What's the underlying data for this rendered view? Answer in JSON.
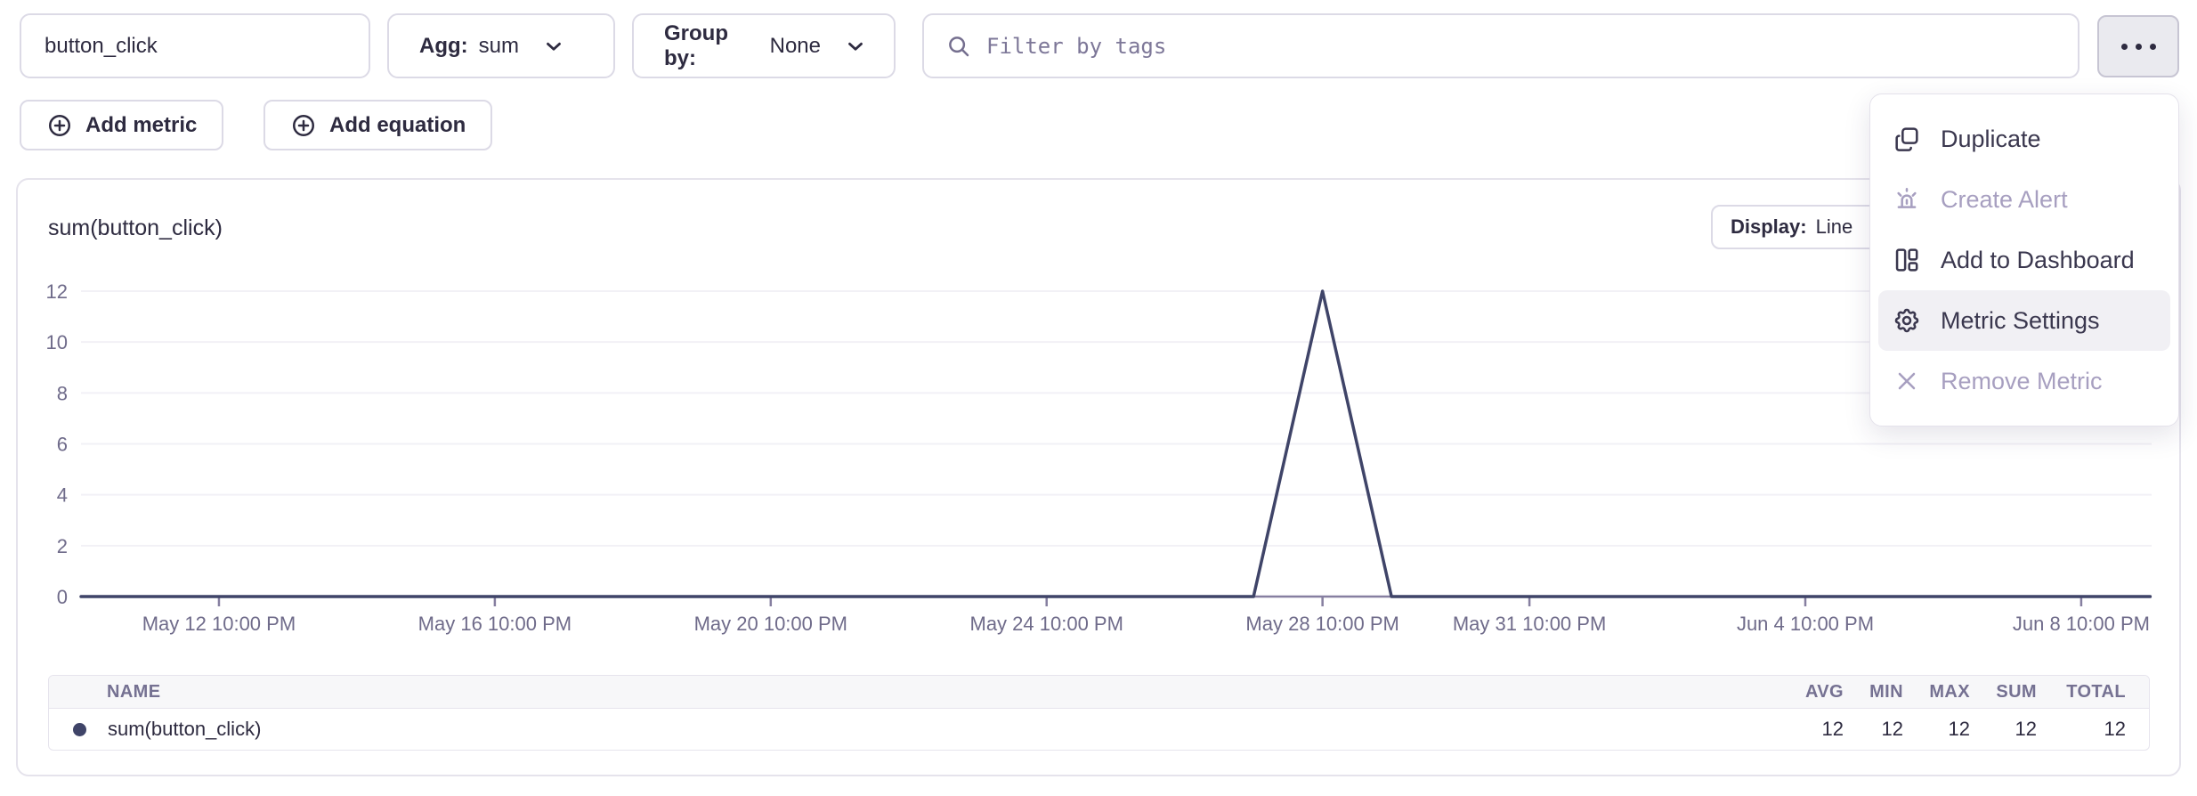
{
  "toolbar": {
    "metric_name": "button_click",
    "agg_label": "Agg:",
    "agg_value": "sum",
    "groupby_label": "Group by:",
    "groupby_value": "None",
    "filter_placeholder": "Filter by tags",
    "add_metric_label": "Add metric",
    "add_equation_label": "Add equation"
  },
  "menu": {
    "items": [
      {
        "label": "Duplicate",
        "icon": "duplicate-icon",
        "disabled": false,
        "highlighted": false
      },
      {
        "label": "Create Alert",
        "icon": "alert-icon",
        "disabled": true,
        "highlighted": false
      },
      {
        "label": "Add to Dashboard",
        "icon": "dashboard-icon",
        "disabled": false,
        "highlighted": false
      },
      {
        "label": "Metric Settings",
        "icon": "gear-icon",
        "disabled": false,
        "highlighted": true
      },
      {
        "label": "Remove Metric",
        "icon": "x-icon",
        "disabled": true,
        "highlighted": false
      }
    ]
  },
  "chart_panel": {
    "title": "sum(button_click)",
    "display_label": "Display:",
    "display_value": "Line"
  },
  "chart_data": {
    "type": "line",
    "title": "sum(button_click)",
    "ylabel": "",
    "xlabel": "",
    "ylim": [
      0,
      12
    ],
    "y_ticks": [
      0,
      2,
      4,
      6,
      8,
      10,
      12
    ],
    "grid": true,
    "x_ticks": [
      {
        "label": "May 12 10:00 PM",
        "day": 2
      },
      {
        "label": "May 16 10:00 PM",
        "day": 6
      },
      {
        "label": "May 20 10:00 PM",
        "day": 10
      },
      {
        "label": "May 24 10:00 PM",
        "day": 14
      },
      {
        "label": "May 28 10:00 PM",
        "day": 18
      },
      {
        "label": "May 31 10:00 PM",
        "day": 21
      },
      {
        "label": "Jun 4 10:00 PM",
        "day": 25
      },
      {
        "label": "Jun 8 10:00 PM",
        "day": 29
      }
    ],
    "xlim_days": [
      0,
      30
    ],
    "series": [
      {
        "name": "sum(button_click)",
        "color": "#3f4468",
        "points": [
          {
            "day": 0,
            "value": 0
          },
          {
            "day": 17,
            "value": 0
          },
          {
            "day": 18,
            "value": 12
          },
          {
            "day": 19,
            "value": 0
          },
          {
            "day": 30,
            "value": 0
          }
        ],
        "annotation": "single spike of 12 at May 28 10:00 PM, 0 elsewhere"
      }
    ]
  },
  "summary_table": {
    "columns": [
      "NAME",
      "AVG",
      "MIN",
      "MAX",
      "SUM",
      "TOTAL"
    ],
    "rows": [
      {
        "name": "sum(button_click)",
        "color": "#3f4468",
        "avg": "12",
        "min": "12",
        "max": "12",
        "sum": "12",
        "total": "12"
      }
    ]
  },
  "colors": {
    "accent_line": "#3f4468",
    "axis": "#867fa0",
    "axis_text": "#6f6b8a",
    "gridline": "#f2f1f6",
    "border": "#dcdae6",
    "menu_highlight": "#f1f0f4",
    "disabled_text": "#a79fc0",
    "table_header_bg": "#f7f7f9",
    "table_header_text": "#757192"
  }
}
